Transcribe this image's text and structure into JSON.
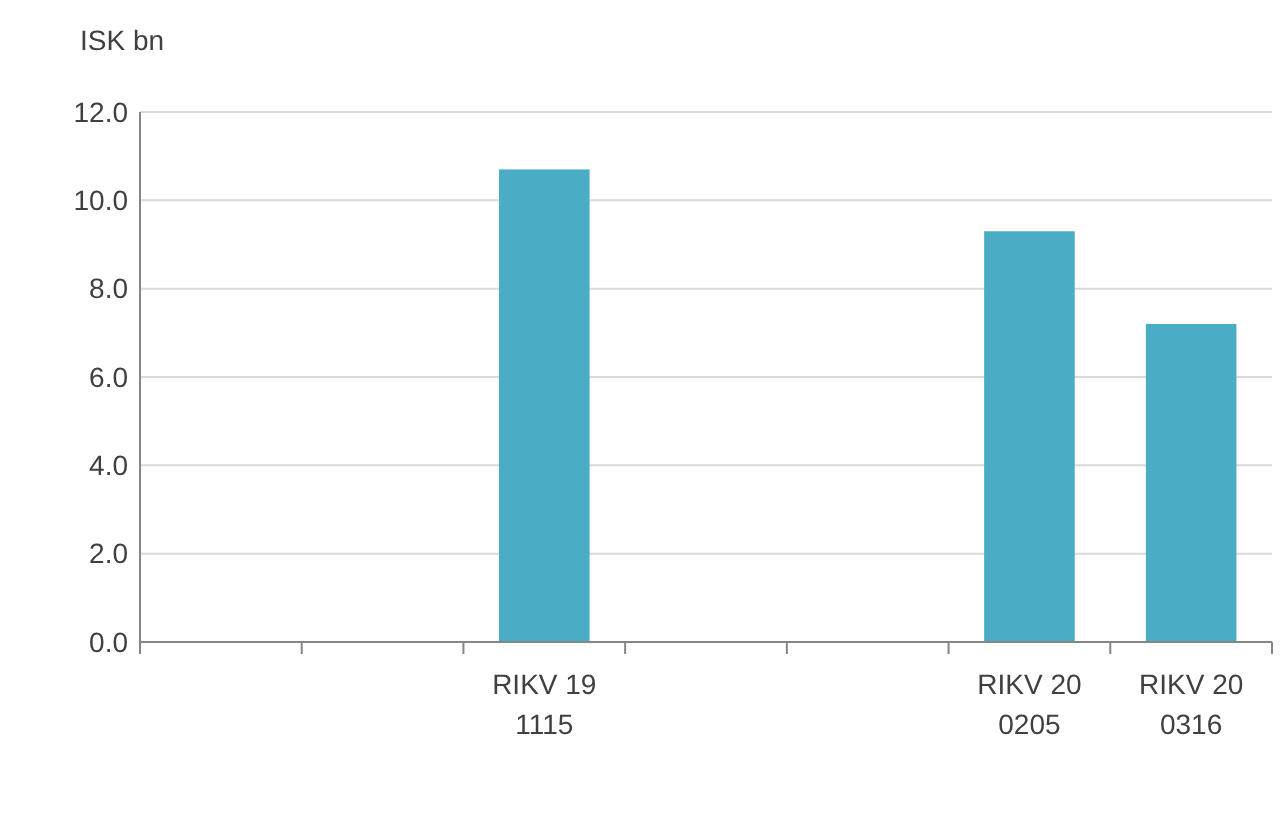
{
  "chart_data": {
    "type": "bar",
    "ylabel": "ISK bn",
    "categories": [
      null,
      null,
      "RIKV 19 1115",
      null,
      null,
      "RIKV 20 0205",
      "RIKV 20 0316"
    ],
    "values": [
      null,
      null,
      10.7,
      null,
      null,
      9.3,
      7.2
    ],
    "color": "#4bacc6",
    "ylim": [
      0,
      12
    ],
    "yticks": [
      {
        "value": 0,
        "label": "0.0"
      },
      {
        "value": 2,
        "label": "2.0"
      },
      {
        "value": 4,
        "label": "4.0"
      },
      {
        "value": 6,
        "label": "6.0"
      },
      {
        "value": 8,
        "label": "8.0"
      },
      {
        "value": 10,
        "label": "10.0"
      },
      {
        "value": 12,
        "label": "12.0"
      }
    ],
    "grid": "y"
  }
}
